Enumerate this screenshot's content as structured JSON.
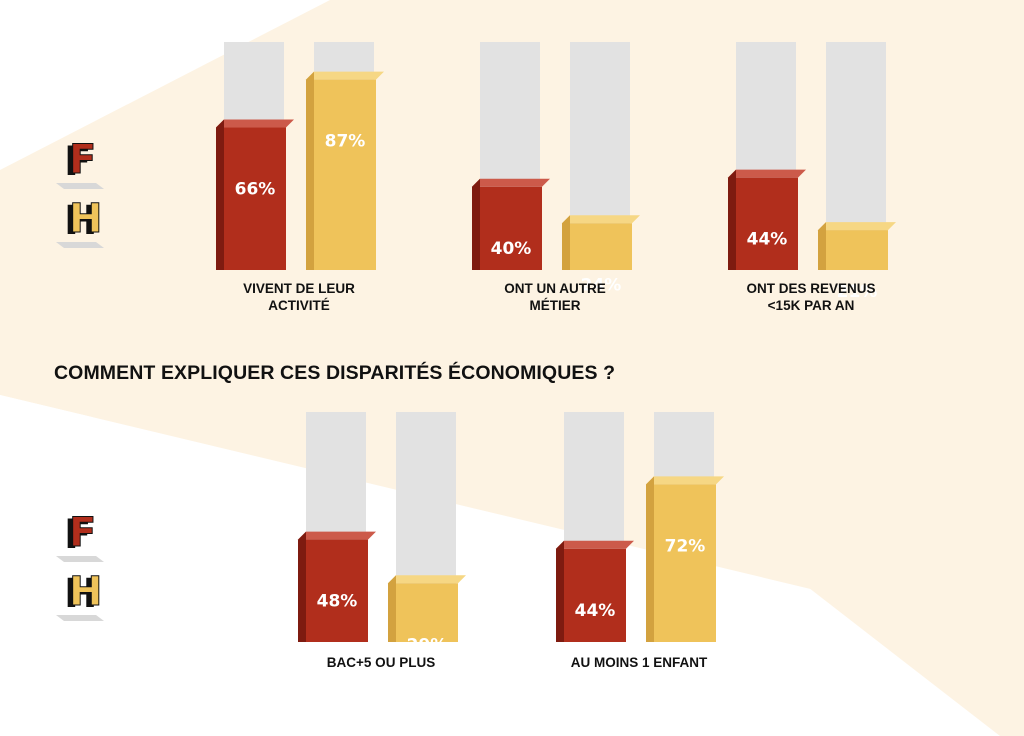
{
  "question": "COMMENT EXPLIQUER CES DISPARITÉS ÉCONOMIQUES ?",
  "legend": {
    "female_letter": "F",
    "male_letter": "H"
  },
  "colors": {
    "female": "#b12e1c",
    "female_top": "#cc5a4a",
    "female_side": "#7e1b10",
    "male": "#efc35a",
    "male_top": "#f6d784",
    "male_side": "#d3a23f",
    "track": "#e2e2e2",
    "band": "#fdf3e3"
  },
  "chart_data": [
    {
      "type": "bar",
      "unit": "%",
      "ylim": [
        0,
        100
      ],
      "categories": [
        "VIVENT DE LEUR ACTIVITÉ",
        "ONT UN AUTRE MÉTIER",
        "ONT DES REVENUS <15K PAR AN"
      ],
      "category_lines": [
        [
          "VIVENT DE LEUR",
          "ACTIVITÉ"
        ],
        [
          "ONT UN AUTRE",
          "MÉTIER"
        ],
        [
          "ONT DES REVENUS",
          "<15K PAR AN"
        ]
      ],
      "series": [
        {
          "key": "F",
          "values": [
            66,
            40,
            44
          ]
        },
        {
          "key": "H",
          "values": [
            87,
            24,
            21
          ]
        }
      ]
    },
    {
      "type": "bar",
      "unit": "%",
      "ylim": [
        0,
        100
      ],
      "categories": [
        "BAC+5 OU PLUS",
        "AU MOINS 1 ENFANT"
      ],
      "category_lines": [
        [
          "BAC+5 OU PLUS"
        ],
        [
          "AU MOINS 1 ENFANT"
        ]
      ],
      "series": [
        {
          "key": "F",
          "values": [
            48,
            44
          ]
        },
        {
          "key": "H",
          "values": [
            29,
            72
          ]
        }
      ]
    }
  ]
}
